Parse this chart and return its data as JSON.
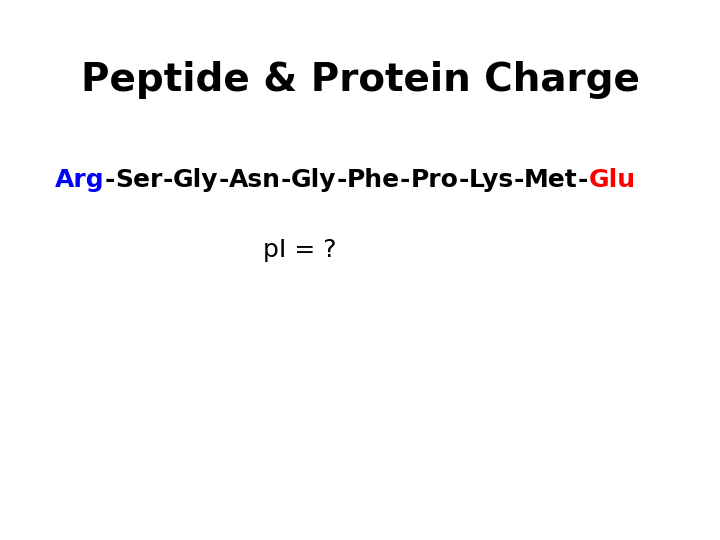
{
  "title": "Peptide & Protein Charge",
  "title_fontsize": 28,
  "title_fontweight": "bold",
  "title_color": "#000000",
  "background_color": "#ffffff",
  "amino_acids": [
    {
      "label": "Arg",
      "color": "#0000ff"
    },
    {
      "label": "-",
      "color": "#000000"
    },
    {
      "label": "Ser",
      "color": "#000000"
    },
    {
      "label": "-",
      "color": "#000000"
    },
    {
      "label": "Gly",
      "color": "#000000"
    },
    {
      "label": "-",
      "color": "#000000"
    },
    {
      "label": "Asn",
      "color": "#000000"
    },
    {
      "label": "-",
      "color": "#000000"
    },
    {
      "label": "Gly",
      "color": "#000000"
    },
    {
      "label": "-",
      "color": "#000000"
    },
    {
      "label": "Phe",
      "color": "#000000"
    },
    {
      "label": "-",
      "color": "#000000"
    },
    {
      "label": "Pro",
      "color": "#000000"
    },
    {
      "label": "-",
      "color": "#000000"
    },
    {
      "label": "Lys",
      "color": "#000000"
    },
    {
      "label": "-",
      "color": "#000000"
    },
    {
      "label": "Met",
      "color": "#000000"
    },
    {
      "label": "-",
      "color": "#000000"
    },
    {
      "label": "Glu",
      "color": "#ff0000"
    }
  ],
  "seq_fontsize": 18,
  "seq_fontweight": "bold",
  "pi_text": "pI = ?",
  "pi_fontsize": 18,
  "pi_color": "#000000"
}
